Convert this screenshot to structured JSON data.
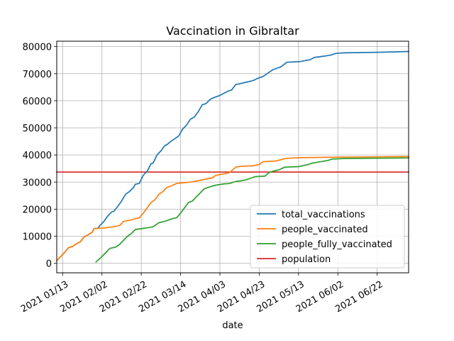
{
  "chart_data": {
    "type": "line",
    "title": "Vaccination in Gibraltar",
    "xlabel": "date",
    "ylabel": "",
    "x_type": "date",
    "xlim": [
      "2021-01-10",
      "2021-07-08"
    ],
    "ylim": [
      -3500,
      82000
    ],
    "x_ticks": [
      "2021-01-13",
      "2021-02-02",
      "2021-02-22",
      "2021-03-14",
      "2021-04-03",
      "2021-04-23",
      "2021-05-13",
      "2021-06-02",
      "2021-06-22"
    ],
    "x_tick_labels": [
      "2021 01/13",
      "2021 02/02",
      "2021 02/22",
      "2021 03/14",
      "2021 04/03",
      "2021 04/23",
      "2021 05/13",
      "2021 06/02",
      "2021 06/22"
    ],
    "y_ticks": [
      0,
      10000,
      20000,
      30000,
      40000,
      50000,
      60000,
      70000,
      80000
    ],
    "y_tick_labels": [
      "0",
      "10000",
      "20000",
      "30000",
      "40000",
      "50000",
      "60000",
      "70000",
      "80000"
    ],
    "grid": true,
    "legend_position": "lower-right",
    "series": [
      {
        "name": "total_vaccinations",
        "color": "#1f77b4",
        "points": [
          [
            "2021-01-10",
            1000
          ],
          [
            "2021-01-14",
            4000
          ],
          [
            "2021-01-16",
            5800
          ],
          [
            "2021-01-18",
            6200
          ],
          [
            "2021-01-20",
            7200
          ],
          [
            "2021-01-22",
            8000
          ],
          [
            "2021-01-24",
            9800
          ],
          [
            "2021-01-26",
            10500
          ],
          [
            "2021-01-28",
            11500
          ],
          [
            "2021-01-29",
            12800
          ],
          [
            "2021-01-31",
            13000
          ],
          [
            "2021-02-01",
            14000
          ],
          [
            "2021-02-03",
            15500
          ],
          [
            "2021-02-05",
            17500
          ],
          [
            "2021-02-07",
            19000
          ],
          [
            "2021-02-08",
            19200
          ],
          [
            "2021-02-10",
            21000
          ],
          [
            "2021-02-12",
            23000
          ],
          [
            "2021-02-14",
            25500
          ],
          [
            "2021-02-16",
            26500
          ],
          [
            "2021-02-18",
            28000
          ],
          [
            "2021-02-19",
            29200
          ],
          [
            "2021-02-21",
            29500
          ],
          [
            "2021-02-23",
            32500
          ],
          [
            "2021-02-25",
            34000
          ],
          [
            "2021-02-27",
            36800
          ],
          [
            "2021-02-28",
            37000
          ],
          [
            "2021-03-02",
            40000
          ],
          [
            "2021-03-04",
            41500
          ],
          [
            "2021-03-06",
            43500
          ],
          [
            "2021-03-07",
            43800
          ],
          [
            "2021-03-09",
            45000
          ],
          [
            "2021-03-11",
            46000
          ],
          [
            "2021-03-13",
            47000
          ],
          [
            "2021-03-15",
            49500
          ],
          [
            "2021-03-17",
            51000
          ],
          [
            "2021-03-19",
            53200
          ],
          [
            "2021-03-21",
            54000
          ],
          [
            "2021-03-23",
            56000
          ],
          [
            "2021-03-25",
            58500
          ],
          [
            "2021-03-27",
            59000
          ],
          [
            "2021-03-29",
            60500
          ],
          [
            "2021-03-31",
            61200
          ],
          [
            "2021-04-03",
            62000
          ],
          [
            "2021-04-07",
            63500
          ],
          [
            "2021-04-09",
            64000
          ],
          [
            "2021-04-11",
            66000
          ],
          [
            "2021-04-13",
            66300
          ],
          [
            "2021-04-16",
            66800
          ],
          [
            "2021-04-20",
            67500
          ],
          [
            "2021-04-22",
            68200
          ],
          [
            "2021-04-25",
            69000
          ],
          [
            "2021-04-28",
            70500
          ],
          [
            "2021-04-30",
            71500
          ],
          [
            "2021-05-04",
            72500
          ],
          [
            "2021-05-07",
            74200
          ],
          [
            "2021-05-14",
            74500
          ],
          [
            "2021-05-19",
            75200
          ],
          [
            "2021-05-21",
            76000
          ],
          [
            "2021-05-25",
            76400
          ],
          [
            "2021-05-29",
            76800
          ],
          [
            "2021-06-01",
            77500
          ],
          [
            "2021-06-05",
            77700
          ],
          [
            "2021-06-22",
            77900
          ],
          [
            "2021-07-08",
            78200
          ]
        ]
      },
      {
        "name": "people_vaccinated",
        "color": "#ff7f0e",
        "points": [
          [
            "2021-01-10",
            1000
          ],
          [
            "2021-01-14",
            4000
          ],
          [
            "2021-01-16",
            5800
          ],
          [
            "2021-01-18",
            6200
          ],
          [
            "2021-01-20",
            7200
          ],
          [
            "2021-01-22",
            8000
          ],
          [
            "2021-01-24",
            9800
          ],
          [
            "2021-01-26",
            10500
          ],
          [
            "2021-01-28",
            11500
          ],
          [
            "2021-01-29",
            12800
          ],
          [
            "2021-02-02",
            13000
          ],
          [
            "2021-02-08",
            13500
          ],
          [
            "2021-02-11",
            14000
          ],
          [
            "2021-02-13",
            15500
          ],
          [
            "2021-02-17",
            16000
          ],
          [
            "2021-02-19",
            16500
          ],
          [
            "2021-02-21",
            16800
          ],
          [
            "2021-02-23",
            18500
          ],
          [
            "2021-02-25",
            20500
          ],
          [
            "2021-02-27",
            22500
          ],
          [
            "2021-03-01",
            23500
          ],
          [
            "2021-03-03",
            25500
          ],
          [
            "2021-03-05",
            26500
          ],
          [
            "2021-03-07",
            28000
          ],
          [
            "2021-03-09",
            28500
          ],
          [
            "2021-03-12",
            29500
          ],
          [
            "2021-03-19",
            30000
          ],
          [
            "2021-03-23",
            30500
          ],
          [
            "2021-03-26",
            31000
          ],
          [
            "2021-03-30",
            31500
          ],
          [
            "2021-04-01",
            32500
          ],
          [
            "2021-04-05",
            33000
          ],
          [
            "2021-04-08",
            33500
          ],
          [
            "2021-04-11",
            35500
          ],
          [
            "2021-04-13",
            35800
          ],
          [
            "2021-04-20",
            36000
          ],
          [
            "2021-04-23",
            36500
          ],
          [
            "2021-04-25",
            37500
          ],
          [
            "2021-05-02",
            37800
          ],
          [
            "2021-05-05",
            38500
          ],
          [
            "2021-05-08",
            38800
          ],
          [
            "2021-05-14",
            39000
          ],
          [
            "2021-06-01",
            39200
          ],
          [
            "2021-07-08",
            39400
          ]
        ]
      },
      {
        "name": "people_fully_vaccinated",
        "color": "#2ca02c",
        "points": [
          [
            "2021-01-30",
            500
          ],
          [
            "2021-02-02",
            2500
          ],
          [
            "2021-02-04",
            4000
          ],
          [
            "2021-02-06",
            5500
          ],
          [
            "2021-02-09",
            6000
          ],
          [
            "2021-02-11",
            7000
          ],
          [
            "2021-02-13",
            8500
          ],
          [
            "2021-02-15",
            10000
          ],
          [
            "2021-02-17",
            11000
          ],
          [
            "2021-02-19",
            12500
          ],
          [
            "2021-02-22",
            12800
          ],
          [
            "2021-02-26",
            13200
          ],
          [
            "2021-02-28",
            13500
          ],
          [
            "2021-03-03",
            15000
          ],
          [
            "2021-03-06",
            15500
          ],
          [
            "2021-03-08",
            16000
          ],
          [
            "2021-03-10",
            16500
          ],
          [
            "2021-03-12",
            16800
          ],
          [
            "2021-03-14",
            18500
          ],
          [
            "2021-03-16",
            20500
          ],
          [
            "2021-03-18",
            22500
          ],
          [
            "2021-03-20",
            23000
          ],
          [
            "2021-03-22",
            24500
          ],
          [
            "2021-03-24",
            26000
          ],
          [
            "2021-03-26",
            27500
          ],
          [
            "2021-03-28",
            28000
          ],
          [
            "2021-03-30",
            28500
          ],
          [
            "2021-04-02",
            29000
          ],
          [
            "2021-04-05",
            29300
          ],
          [
            "2021-04-08",
            29500
          ],
          [
            "2021-04-11",
            30200
          ],
          [
            "2021-04-14",
            30500
          ],
          [
            "2021-04-17",
            31000
          ],
          [
            "2021-04-19",
            31500
          ],
          [
            "2021-04-21",
            32000
          ],
          [
            "2021-04-26",
            32200
          ],
          [
            "2021-04-28",
            33500
          ],
          [
            "2021-04-30",
            34000
          ],
          [
            "2021-05-03",
            34500
          ],
          [
            "2021-05-06",
            35500
          ],
          [
            "2021-05-13",
            35700
          ],
          [
            "2021-05-15",
            36000
          ],
          [
            "2021-05-18",
            36500
          ],
          [
            "2021-05-20",
            37000
          ],
          [
            "2021-05-24",
            37500
          ],
          [
            "2021-05-28",
            38000
          ],
          [
            "2021-05-30",
            38500
          ],
          [
            "2021-06-05",
            38700
          ],
          [
            "2021-07-08",
            38900
          ]
        ]
      },
      {
        "name": "population",
        "color": "#d62728",
        "points": [
          [
            "2021-01-10",
            33700
          ],
          [
            "2021-07-08",
            33700
          ]
        ]
      }
    ]
  }
}
